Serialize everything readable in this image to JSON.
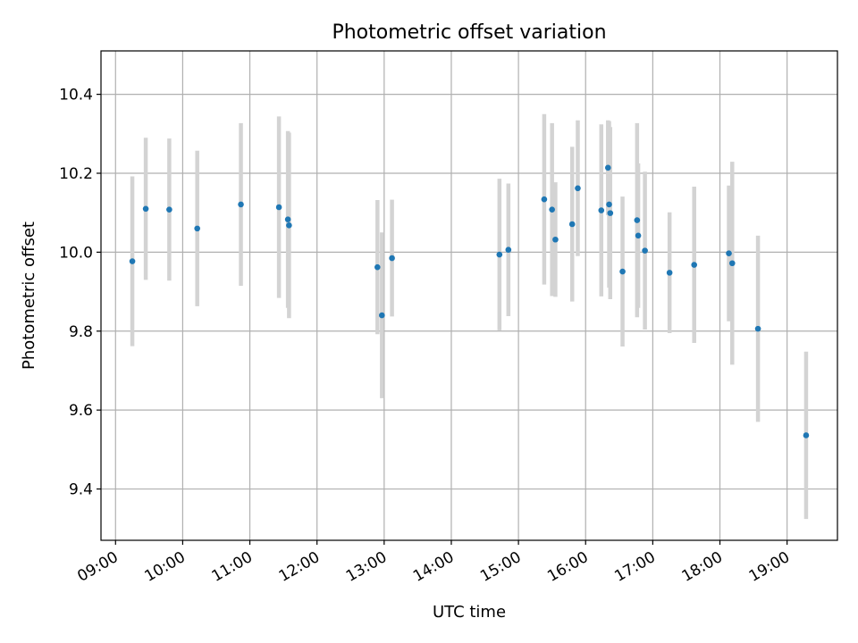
{
  "chart_data": {
    "type": "scatter",
    "title": "Photometric offset variation",
    "xlabel": "UTC time",
    "ylabel": "Photometric offset",
    "xlim": [
      "08:47",
      "19:45"
    ],
    "ylim": [
      9.27,
      10.51
    ],
    "grid": true,
    "x_ticks": [
      "09:00",
      "10:00",
      "11:00",
      "12:00",
      "13:00",
      "14:00",
      "15:00",
      "16:00",
      "17:00",
      "18:00",
      "19:00"
    ],
    "y_ticks": [
      "9.4",
      "9.6",
      "9.8",
      "10.0",
      "10.2",
      "10.4"
    ],
    "marker_color": "#1f77b4",
    "errorbar_color": "#d3d3d3",
    "series": [
      {
        "x": [
          "09:15",
          "09:27",
          "09:48",
          "10:13",
          "10:52",
          "11:26",
          "11:34",
          "11:35",
          "12:54",
          "12:58",
          "13:07",
          "14:43",
          "14:51",
          "15:23",
          "15:30",
          "15:33",
          "15:48",
          "15:53",
          "16:14",
          "16:20",
          "16:21",
          "16:22",
          "16:33",
          "16:46",
          "16:47",
          "16:53",
          "17:15",
          "17:37",
          "18:08",
          "18:11",
          "18:34",
          "19:17"
        ],
        "y": [
          9.977,
          10.11,
          10.108,
          10.06,
          10.121,
          10.114,
          10.083,
          10.068,
          9.962,
          9.84,
          9.985,
          9.994,
          10.006,
          10.134,
          10.108,
          10.032,
          10.071,
          10.162,
          10.106,
          10.214,
          10.121,
          10.099,
          9.951,
          10.081,
          10.042,
          10.004,
          9.948,
          9.968,
          9.997,
          9.972,
          9.806,
          9.536
        ],
        "yerr": [
          0.215,
          0.18,
          0.18,
          0.197,
          0.206,
          0.23,
          0.224,
          0.235,
          0.17,
          0.21,
          0.148,
          0.192,
          0.168,
          0.216,
          0.219,
          0.145,
          0.196,
          0.172,
          0.218,
          0.12,
          0.211,
          0.218,
          0.19,
          0.246,
          0.183,
          0.2,
          0.153,
          0.198,
          0.172,
          0.257,
          0.236,
          0.212
        ]
      }
    ]
  }
}
